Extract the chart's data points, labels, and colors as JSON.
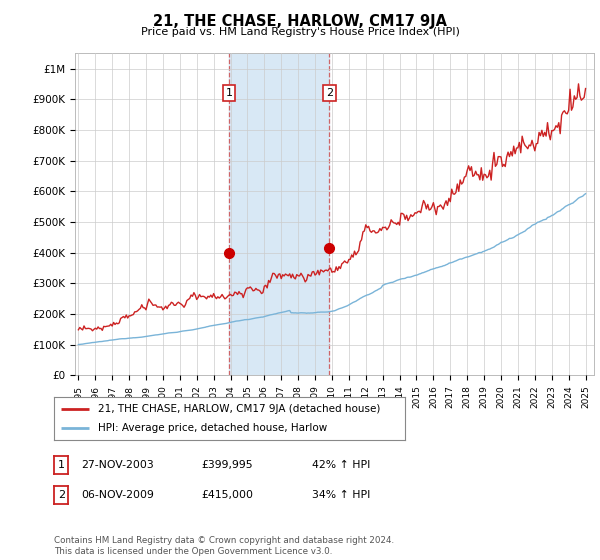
{
  "title": "21, THE CHASE, HARLOW, CM17 9JA",
  "subtitle": "Price paid vs. HM Land Registry's House Price Index (HPI)",
  "ylim": [
    0,
    1050000
  ],
  "yticks": [
    0,
    100000,
    200000,
    300000,
    400000,
    500000,
    600000,
    700000,
    800000,
    900000,
    1000000
  ],
  "ytick_labels": [
    "£0",
    "£100K",
    "£200K",
    "£300K",
    "£400K",
    "£500K",
    "£600K",
    "£700K",
    "£800K",
    "£900K",
    "£1M"
  ],
  "hpi_color": "#7ab4d8",
  "price_color": "#cc2222",
  "shaded_color": "#d8e8f5",
  "vline_color": "#cc4444",
  "marker_color": "#cc0000",
  "sale1_x": 2003.9,
  "sale1_y": 399995,
  "sale2_x": 2009.85,
  "sale2_y": 415000,
  "vline1_x": 2003.9,
  "vline2_x": 2009.85,
  "xlim_left": 1994.8,
  "xlim_right": 2025.5,
  "footer": "Contains HM Land Registry data © Crown copyright and database right 2024.\nThis data is licensed under the Open Government Licence v3.0.",
  "legend_line1": "21, THE CHASE, HARLOW, CM17 9JA (detached house)",
  "legend_line2": "HPI: Average price, detached house, Harlow",
  "table_row1": [
    "1",
    "27-NOV-2003",
    "£399,995",
    "42% ↑ HPI"
  ],
  "table_row2": [
    "2",
    "06-NOV-2009",
    "£415,000",
    "34% ↑ HPI"
  ],
  "background_color": "#ffffff",
  "grid_color": "#cccccc"
}
